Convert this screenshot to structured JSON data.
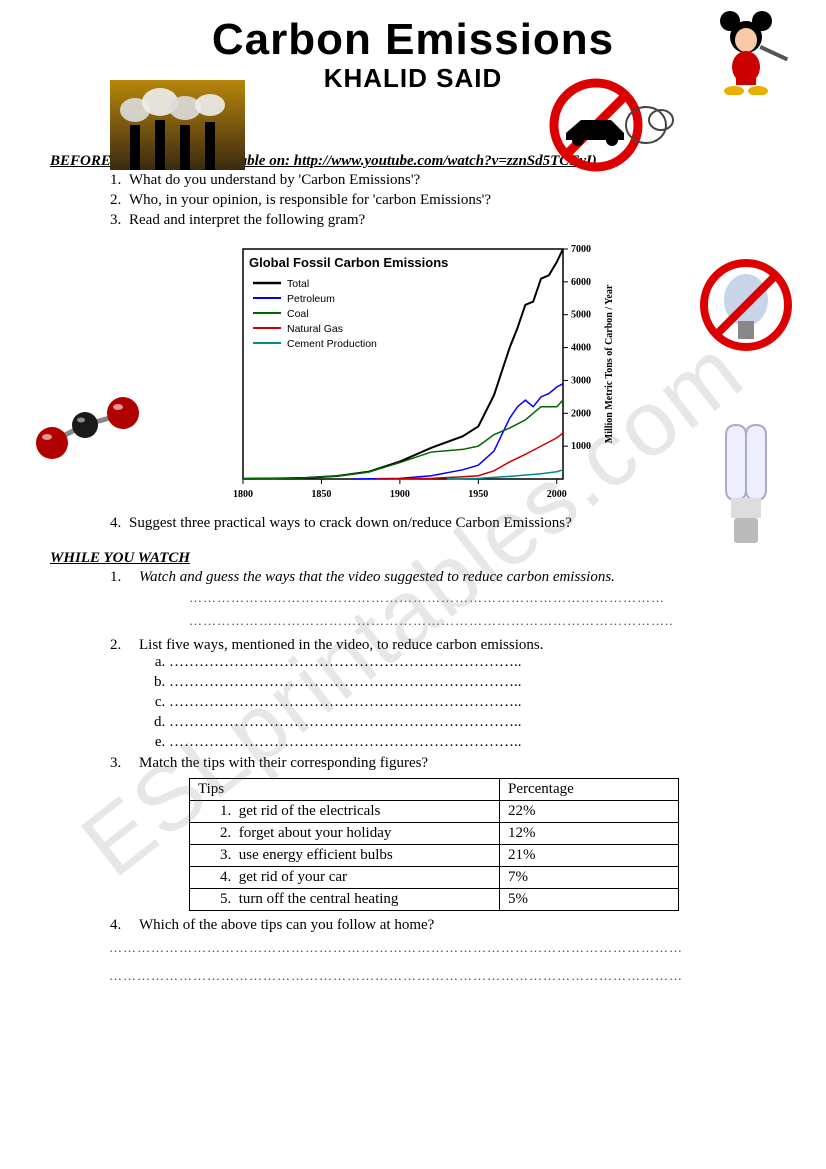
{
  "header": {
    "title": "Carbon Emissions",
    "subtitle": "KHALID SAID"
  },
  "watermark_text": "ESLprintables.com",
  "before_section": {
    "heading": "BEFORE YOU WATCH (available on: http://www.youtube.com/watch?v=zznSd5TCFyI)",
    "q1": "What do you understand by 'Carbon Emissions'?",
    "q2": "Who, in your opinion, is responsible for 'carbon Emissions'?",
    "q3": "Read and interpret the following gram?",
    "q4": "Suggest three practical ways to crack down on/reduce Carbon Emissions?"
  },
  "chart": {
    "title": "Global Fossil Carbon Emissions",
    "type": "line",
    "ylabel": "Million Metric Tons of Carbon / Year",
    "xlim": [
      1800,
      2004
    ],
    "ylim": [
      0,
      7000
    ],
    "xticks": [
      1800,
      1850,
      1900,
      1950,
      2000
    ],
    "yticks": [
      0,
      1000,
      2000,
      3000,
      4000,
      5000,
      6000,
      7000
    ],
    "title_fontsize": 13,
    "label_fontsize": 10,
    "tick_fontsize": 10,
    "background": "#ffffff",
    "axis_color": "#000000",
    "series": [
      {
        "name": "Total",
        "color": "#000000",
        "width": 2,
        "points": [
          [
            1800,
            8
          ],
          [
            1820,
            15
          ],
          [
            1840,
            35
          ],
          [
            1860,
            90
          ],
          [
            1880,
            220
          ],
          [
            1900,
            530
          ],
          [
            1920,
            950
          ],
          [
            1940,
            1300
          ],
          [
            1950,
            1600
          ],
          [
            1960,
            2550
          ],
          [
            1970,
            4000
          ],
          [
            1975,
            4600
          ],
          [
            1980,
            5300
          ],
          [
            1985,
            5400
          ],
          [
            1990,
            6100
          ],
          [
            1995,
            6200
          ],
          [
            2000,
            6600
          ],
          [
            2004,
            7000
          ]
        ]
      },
      {
        "name": "Petroleum",
        "color": "#0000ff",
        "width": 1.5,
        "points": [
          [
            1870,
            0
          ],
          [
            1900,
            20
          ],
          [
            1920,
            100
          ],
          [
            1940,
            280
          ],
          [
            1950,
            420
          ],
          [
            1960,
            850
          ],
          [
            1970,
            1850
          ],
          [
            1975,
            2200
          ],
          [
            1980,
            2400
          ],
          [
            1985,
            2200
          ],
          [
            1990,
            2500
          ],
          [
            1995,
            2600
          ],
          [
            2000,
            2800
          ],
          [
            2004,
            2900
          ]
        ]
      },
      {
        "name": "Coal",
        "color": "#006400",
        "width": 1.5,
        "points": [
          [
            1800,
            8
          ],
          [
            1820,
            15
          ],
          [
            1840,
            35
          ],
          [
            1860,
            90
          ],
          [
            1880,
            210
          ],
          [
            1900,
            500
          ],
          [
            1920,
            820
          ],
          [
            1940,
            900
          ],
          [
            1950,
            1000
          ],
          [
            1960,
            1350
          ],
          [
            1970,
            1550
          ],
          [
            1980,
            1800
          ],
          [
            1990,
            2200
          ],
          [
            2000,
            2200
          ],
          [
            2004,
            2400
          ]
        ]
      },
      {
        "name": "Natural Gas",
        "color": "#cc0000",
        "width": 1.5,
        "points": [
          [
            1885,
            0
          ],
          [
            1920,
            20
          ],
          [
            1940,
            70
          ],
          [
            1950,
            100
          ],
          [
            1960,
            250
          ],
          [
            1970,
            520
          ],
          [
            1980,
            750
          ],
          [
            1990,
            1000
          ],
          [
            2000,
            1250
          ],
          [
            2004,
            1400
          ]
        ]
      },
      {
        "name": "Cement Production",
        "color": "#008b8b",
        "width": 1.5,
        "points": [
          [
            1930,
            0
          ],
          [
            1950,
            20
          ],
          [
            1970,
            80
          ],
          [
            1990,
            160
          ],
          [
            2000,
            220
          ],
          [
            2004,
            280
          ]
        ]
      }
    ]
  },
  "while_section": {
    "heading": "WHILE YOU WATCH",
    "q1": "Watch and guess the ways that the video suggested to reduce carbon emissions.",
    "q2": "List five ways, mentioned in the video, to reduce carbon emissions.",
    "q3": "Match the tips with their corresponding figures?",
    "q4": "Which of the above tips can you follow at home?"
  },
  "tips_table": {
    "headers": [
      "Tips",
      "Percentage"
    ],
    "rows": [
      {
        "n": "1.",
        "tip": "get rid of the electricals",
        "pct": "22%"
      },
      {
        "n": "2.",
        "tip": "forget about your holiday",
        "pct": "12%"
      },
      {
        "n": "3.",
        "tip": "use energy efficient bulbs",
        "pct": "21%"
      },
      {
        "n": "4.",
        "tip": "get rid of your car",
        "pct": "7%"
      },
      {
        "n": "5.",
        "tip": "turn off the central heating",
        "pct": "5%"
      }
    ]
  },
  "icons": {
    "factory": "factory",
    "mickey": "cartoon",
    "no_car": "no-car",
    "no_bulb": "no-bulb",
    "cfl": "cfl-bulb",
    "molecule": "co2-molecule"
  }
}
